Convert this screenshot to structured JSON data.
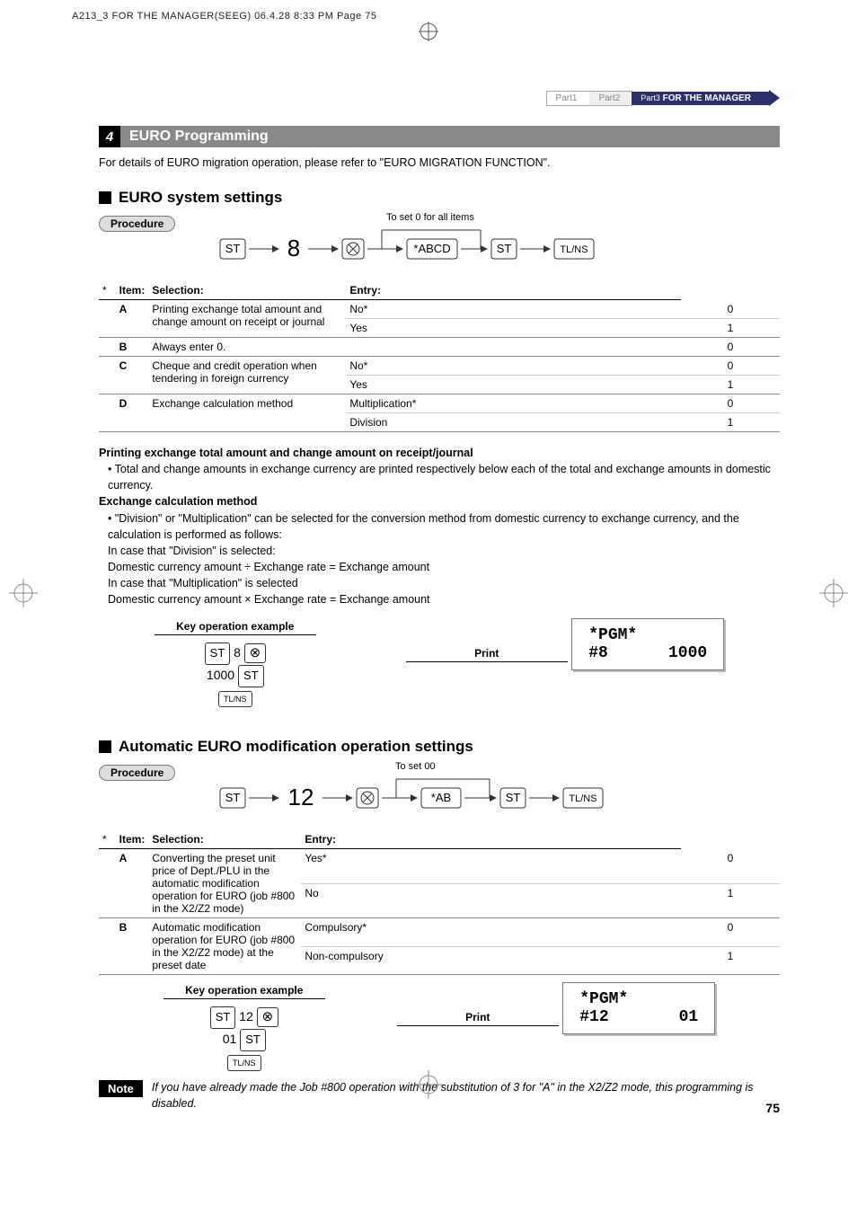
{
  "header_line": "A213_3 FOR THE MANAGER(SEEG)  06.4.28 8:33 PM  Page 75",
  "breadcrumb": {
    "p1": "Part1",
    "p2": "Part2",
    "p3_pt": "Part3",
    "p3_lbl": "FOR THE MANAGER"
  },
  "section": {
    "num": "4",
    "title": "EURO Programming"
  },
  "intro": "For details of EURO migration operation, please refer to \"EURO MIGRATION FUNCTION\".",
  "sub1": "EURO system settings",
  "proc_label": "Procedure",
  "seq1": {
    "to_set": "To set  0  for all items",
    "k_st": "ST",
    "big": "8",
    "param": "*ABCD",
    "k_tlns": "TL/NS"
  },
  "table1": {
    "headers": {
      "item": "Item:",
      "sel": "Selection:",
      "entry": "Entry:"
    },
    "rows": [
      {
        "l": "A",
        "desc": "Printing exchange total amount and change amount on receipt or journal",
        "opts": [
          {
            "s": "No*",
            "e": "0"
          },
          {
            "s": "Yes",
            "e": "1"
          }
        ]
      },
      {
        "l": "B",
        "desc": "Always enter 0.",
        "opts": [
          {
            "s": "",
            "e": "0"
          }
        ]
      },
      {
        "l": "C",
        "desc": "Cheque and credit operation when tendering in foreign currency",
        "opts": [
          {
            "s": "No*",
            "e": "0"
          },
          {
            "s": "Yes",
            "e": "1"
          }
        ]
      },
      {
        "l": "D",
        "desc": "Exchange calculation method",
        "opts": [
          {
            "s": "Multiplication*",
            "e": "0"
          },
          {
            "s": "Division",
            "e": "1"
          }
        ]
      }
    ]
  },
  "notes1": {
    "h1": "Printing exchange total amount and change amount on receipt/journal",
    "b1": "• Total and change amounts in exchange currency are printed respectively below each of the total and exchange amounts in domestic currency.",
    "h2": "Exchange calculation method",
    "b2": "• \"Division\" or \"Multiplication\" can be selected for the conversion method from domestic currency to exchange currency, and the calculation is performed as follows:",
    "l1": "In case that \"Division\" is selected:",
    "l2": "Domestic currency amount ÷ Exchange rate = Exchange amount",
    "l3": "In case that \"Multiplication\" is selected",
    "l4": "Domestic currency amount × Exchange rate = Exchange amount"
  },
  "example_heads": {
    "key": "Key operation example",
    "print": "Print"
  },
  "ex1": {
    "line1_pre": "ST",
    "line1_num": "8",
    "line2_num": "1000",
    "line2_key": "ST",
    "line3_key": "TL/NS",
    "print_l1": "*PGM*",
    "print_l2a": "#8",
    "print_l2b": "1000"
  },
  "sub2": "Automatic EURO modification operation settings",
  "seq2": {
    "to_set": "To set  00",
    "k_st": "ST",
    "big": "12",
    "param": "*AB",
    "k_tlns": "TL/NS"
  },
  "table2": {
    "rows": [
      {
        "l": "A",
        "desc": "Converting the preset unit price of Dept./PLU in the automatic modification operation for EURO (job #800 in the X2/Z2 mode)",
        "opts": [
          {
            "s": "Yes*",
            "e": "0"
          },
          {
            "s": "No",
            "e": "1"
          }
        ]
      },
      {
        "l": "B",
        "desc": "Automatic modification operation for EURO (job #800 in the X2/Z2 mode) at the preset date",
        "opts": [
          {
            "s": "Compulsory*",
            "e": "0"
          },
          {
            "s": "Non-compulsory",
            "e": "1"
          }
        ]
      }
    ]
  },
  "ex2": {
    "line1_pre": "ST",
    "line1_num": "12",
    "line2_num": "01",
    "line2_key": "ST",
    "line3_key": "TL/NS",
    "print_l1": "*PGM*",
    "print_l2a": "#12",
    "print_l2b": "01"
  },
  "note": {
    "label": "Note",
    "text": "If you have already made the Job #800 operation with the substitution of 3 for \"A\" in the X2/Z2 mode, this programming is disabled."
  },
  "pagenum": "75",
  "colors": {
    "section_bg": "#888888",
    "accent": "#2b2f6b"
  }
}
